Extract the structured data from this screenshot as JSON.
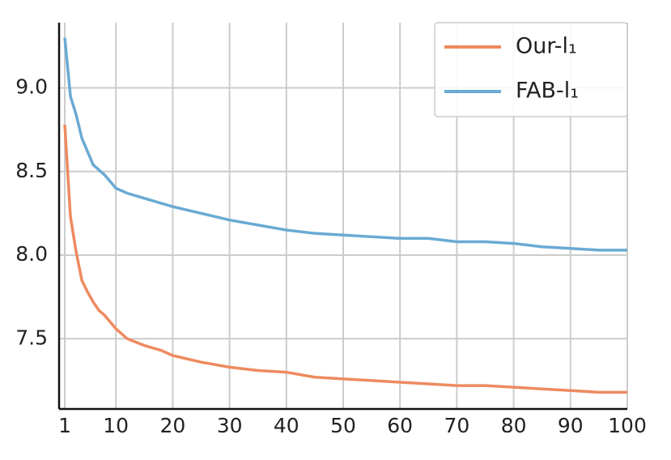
{
  "chart_data": {
    "type": "line",
    "x": [
      1,
      2,
      3,
      4,
      5,
      6,
      7,
      8,
      10,
      12,
      15,
      18,
      20,
      25,
      30,
      35,
      40,
      45,
      50,
      55,
      60,
      65,
      70,
      75,
      80,
      85,
      90,
      95,
      100
    ],
    "series": [
      {
        "name": "Our-l₁",
        "color": "#ee8a5f",
        "values": [
          8.78,
          8.23,
          8.02,
          7.85,
          7.78,
          7.72,
          7.67,
          7.64,
          7.56,
          7.5,
          7.46,
          7.43,
          7.4,
          7.36,
          7.33,
          7.31,
          7.3,
          7.27,
          7.26,
          7.25,
          7.24,
          7.23,
          7.22,
          7.22,
          7.21,
          7.2,
          7.19,
          7.18,
          7.18
        ]
      },
      {
        "name": "FAB-l₁",
        "color": "#6aaad3",
        "values": [
          9.3,
          8.95,
          8.84,
          8.7,
          8.62,
          8.54,
          8.51,
          8.48,
          8.4,
          8.37,
          8.34,
          8.31,
          8.29,
          8.25,
          8.21,
          8.18,
          8.15,
          8.13,
          8.12,
          8.11,
          8.1,
          8.1,
          8.08,
          8.08,
          8.07,
          8.05,
          8.04,
          8.03,
          8.03
        ]
      }
    ],
    "xlim": [
      0,
      100
    ],
    "ylim": [
      7.08,
      9.39
    ],
    "xticks": [
      1,
      10,
      20,
      30,
      40,
      50,
      60,
      70,
      80,
      90,
      100
    ],
    "yticks": [
      {
        "value": 7.5,
        "label": "7.5"
      },
      {
        "value": 8,
        "label": "8.0"
      },
      {
        "value": 8.5,
        "label": "8.5"
      },
      {
        "value": 9,
        "label": "9.0"
      }
    ],
    "grid": true,
    "legend": "upper right"
  }
}
